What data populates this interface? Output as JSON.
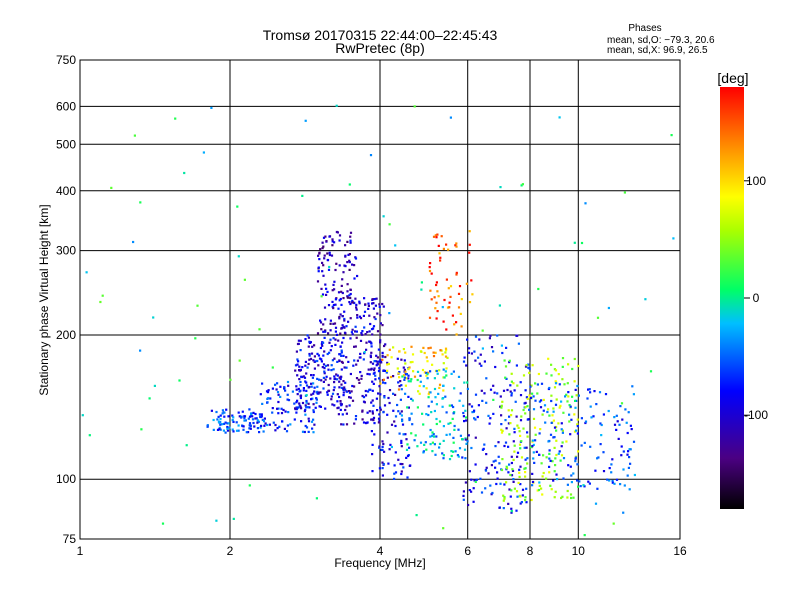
{
  "chart_data": {
    "type": "scatter",
    "title": "Tromsø 20170315 22:44:00–22:45:43",
    "subtitle": "RwPretec (8p)",
    "xlabel": "Frequency [MHz]",
    "ylabel": "Stationary phase Virtual Height [km]",
    "x_scale": "log",
    "y_scale": "log",
    "xlim": [
      1,
      16
    ],
    "ylim": [
      75,
      750
    ],
    "x_ticks": [
      1,
      2,
      4,
      6,
      8,
      10,
      16
    ],
    "y_ticks": [
      75,
      100,
      200,
      300,
      400,
      500,
      600,
      750
    ],
    "grid": true,
    "legend": {
      "title": "Phases",
      "line1": "mean, sd,O: −79.3, 20.6",
      "line2": "mean, sd,X:  96.9, 26.5"
    },
    "colorbar": {
      "label": "[deg]",
      "range": [
        -180,
        180
      ],
      "ticks": [
        100,
        0,
        -100
      ],
      "colors": [
        "#000000",
        "#4b0082",
        "#0000ff",
        "#00bfff",
        "#00ff00",
        "#ffff00",
        "#ff8c00",
        "#ff0000"
      ]
    },
    "clusters": [
      {
        "x": [
          1.8,
          2.3
        ],
        "y": [
          125,
          140
        ],
        "phase": -60,
        "count": 90
      },
      {
        "x": [
          2.3,
          3.0
        ],
        "y": [
          125,
          160
        ],
        "phase": -70,
        "count": 120
      },
      {
        "x": [
          2.7,
          3.4
        ],
        "y": [
          140,
          200
        ],
        "phase": -90,
        "count": 170
      },
      {
        "x": [
          3.0,
          3.6
        ],
        "y": [
          200,
          330
        ],
        "phase": -110,
        "count": 140
      },
      {
        "x": [
          3.3,
          4.1
        ],
        "y": [
          130,
          240
        ],
        "phase": -100,
        "count": 200
      },
      {
        "x": [
          3.8,
          4.6
        ],
        "y": [
          100,
          180
        ],
        "phase": -90,
        "count": 120
      },
      {
        "x": [
          4.0,
          5.5
        ],
        "y": [
          150,
          190
        ],
        "phase": 110,
        "count": 70
      },
      {
        "x": [
          4.4,
          6.0
        ],
        "y": [
          110,
          170
        ],
        "phase": -20,
        "count": 130
      },
      {
        "x": [
          5.0,
          6.2
        ],
        "y": [
          200,
          330
        ],
        "phase": 150,
        "count": 60
      },
      {
        "x": [
          5.8,
          8.0
        ],
        "y": [
          85,
          200
        ],
        "phase": -80,
        "count": 180
      },
      {
        "x": [
          7.0,
          10.0
        ],
        "y": [
          90,
          180
        ],
        "phase": 60,
        "count": 170
      },
      {
        "x": [
          8.0,
          13.0
        ],
        "y": [
          95,
          160
        ],
        "phase": -60,
        "count": 160
      },
      {
        "x": [
          1.0,
          16.0
        ],
        "y": [
          75,
          650
        ],
        "phase": 0,
        "count": 90
      }
    ]
  }
}
